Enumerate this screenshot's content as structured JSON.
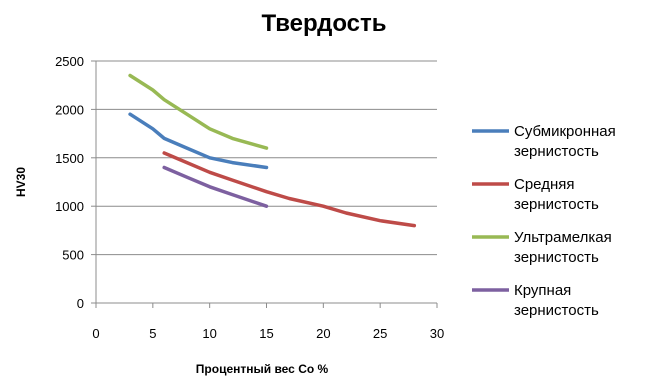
{
  "chart_data": {
    "type": "line",
    "title": "Твердость",
    "xlabel": "Процентный вес Co %",
    "ylabel": "HV30",
    "xlim": [
      0,
      30
    ],
    "ylim": [
      0,
      2500
    ],
    "xticks": [
      0,
      5,
      10,
      15,
      20,
      25,
      30
    ],
    "yticks": [
      0,
      500,
      1000,
      1500,
      2000,
      2500
    ],
    "grid": "horizontal",
    "legend_position": "right",
    "series": [
      {
        "name": "Субмикронная зернистость",
        "legend_lines": [
          "Субмикронная",
          "зернистость"
        ],
        "color": "#4a7ebb",
        "x": [
          3,
          5,
          6,
          8,
          10,
          12,
          15
        ],
        "y": [
          1950,
          1800,
          1700,
          1600,
          1500,
          1450,
          1400
        ]
      },
      {
        "name": "Средняя зернистость",
        "legend_lines": [
          "Средняя",
          "зернистость"
        ],
        "color": "#be4b48",
        "x": [
          6,
          8,
          10,
          12,
          15,
          17,
          20,
          22,
          25,
          28
        ],
        "y": [
          1550,
          1450,
          1350,
          1270,
          1150,
          1080,
          1000,
          930,
          850,
          800
        ]
      },
      {
        "name": "Ультрамелкая зернистость",
        "legend_lines": [
          "Ультрамелкая",
          "зернистость"
        ],
        "color": "#98b954",
        "x": [
          3,
          5,
          6,
          8,
          10,
          12,
          15
        ],
        "y": [
          2350,
          2200,
          2100,
          1950,
          1800,
          1700,
          1600
        ]
      },
      {
        "name": "Крупная зернистость",
        "legend_lines": [
          "Крупная",
          "зернистость"
        ],
        "color": "#7d60a0",
        "x": [
          6,
          8,
          10,
          12,
          15
        ],
        "y": [
          1400,
          1300,
          1200,
          1120,
          1000
        ]
      }
    ]
  }
}
